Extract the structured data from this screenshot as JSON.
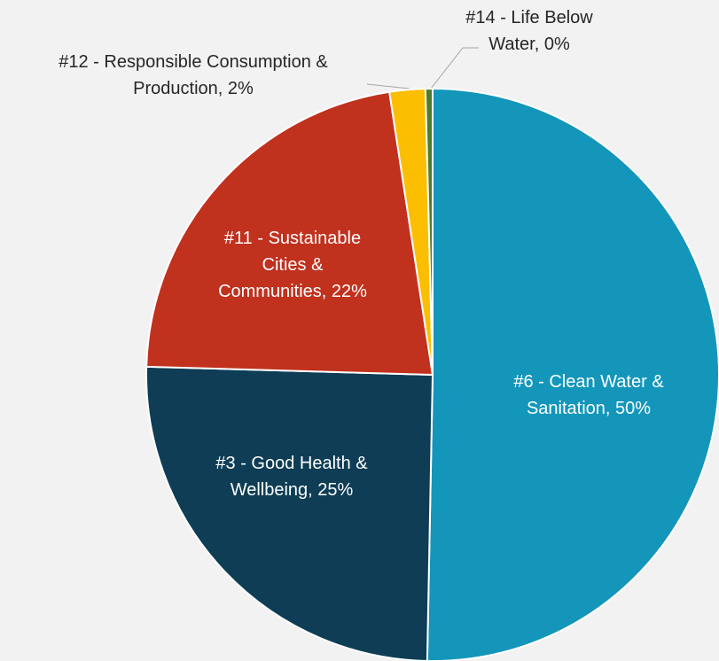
{
  "chart_data": {
    "type": "pie",
    "labels": [
      "#6 - Clean Water & Sanitation, 50%",
      "#3 - Good Health & Wellbeing, 25%",
      "#11 - Sustainable Cities & Communities, 22%",
      "#12 - Responsible Consumption & Production, 2%",
      "#14 - Life Below Water, 0%"
    ],
    "values": [
      50,
      25,
      22,
      2,
      0.4
    ],
    "colors": [
      "#1496bb",
      "#0e3d55",
      "#c0311e",
      "#fbbe00",
      "#4e7b2e"
    ]
  }
}
